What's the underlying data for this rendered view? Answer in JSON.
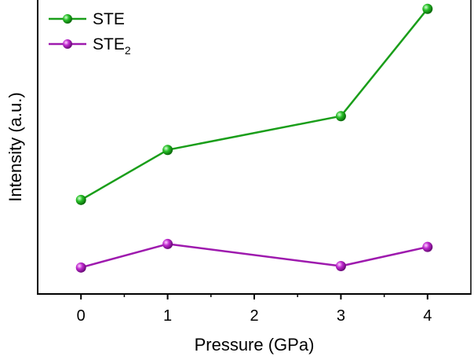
{
  "chart_data": {
    "type": "line",
    "xlabel": "Pressure (GPa)",
    "ylabel": "Intensity (a.u.)",
    "xlim": [
      -0.5,
      4.5
    ],
    "ylim": [
      0,
      1
    ],
    "x_ticks": [
      "0",
      "1",
      "2",
      "3",
      "4"
    ],
    "y_ticks_labeled": false,
    "legend_position": "top-left",
    "series": [
      {
        "name": "STE",
        "name_base": "STE",
        "name_sub": "",
        "color": "#1a9e1a",
        "x": [
          0,
          1,
          3,
          4
        ],
        "y": [
          0.32,
          0.49,
          0.605,
          0.97
        ]
      },
      {
        "name": "STE2",
        "name_base": "STE",
        "name_sub": "2",
        "color": "#9e1aae",
        "x": [
          0,
          1,
          3,
          4
        ],
        "y": [
          0.09,
          0.17,
          0.095,
          0.16
        ]
      }
    ]
  }
}
